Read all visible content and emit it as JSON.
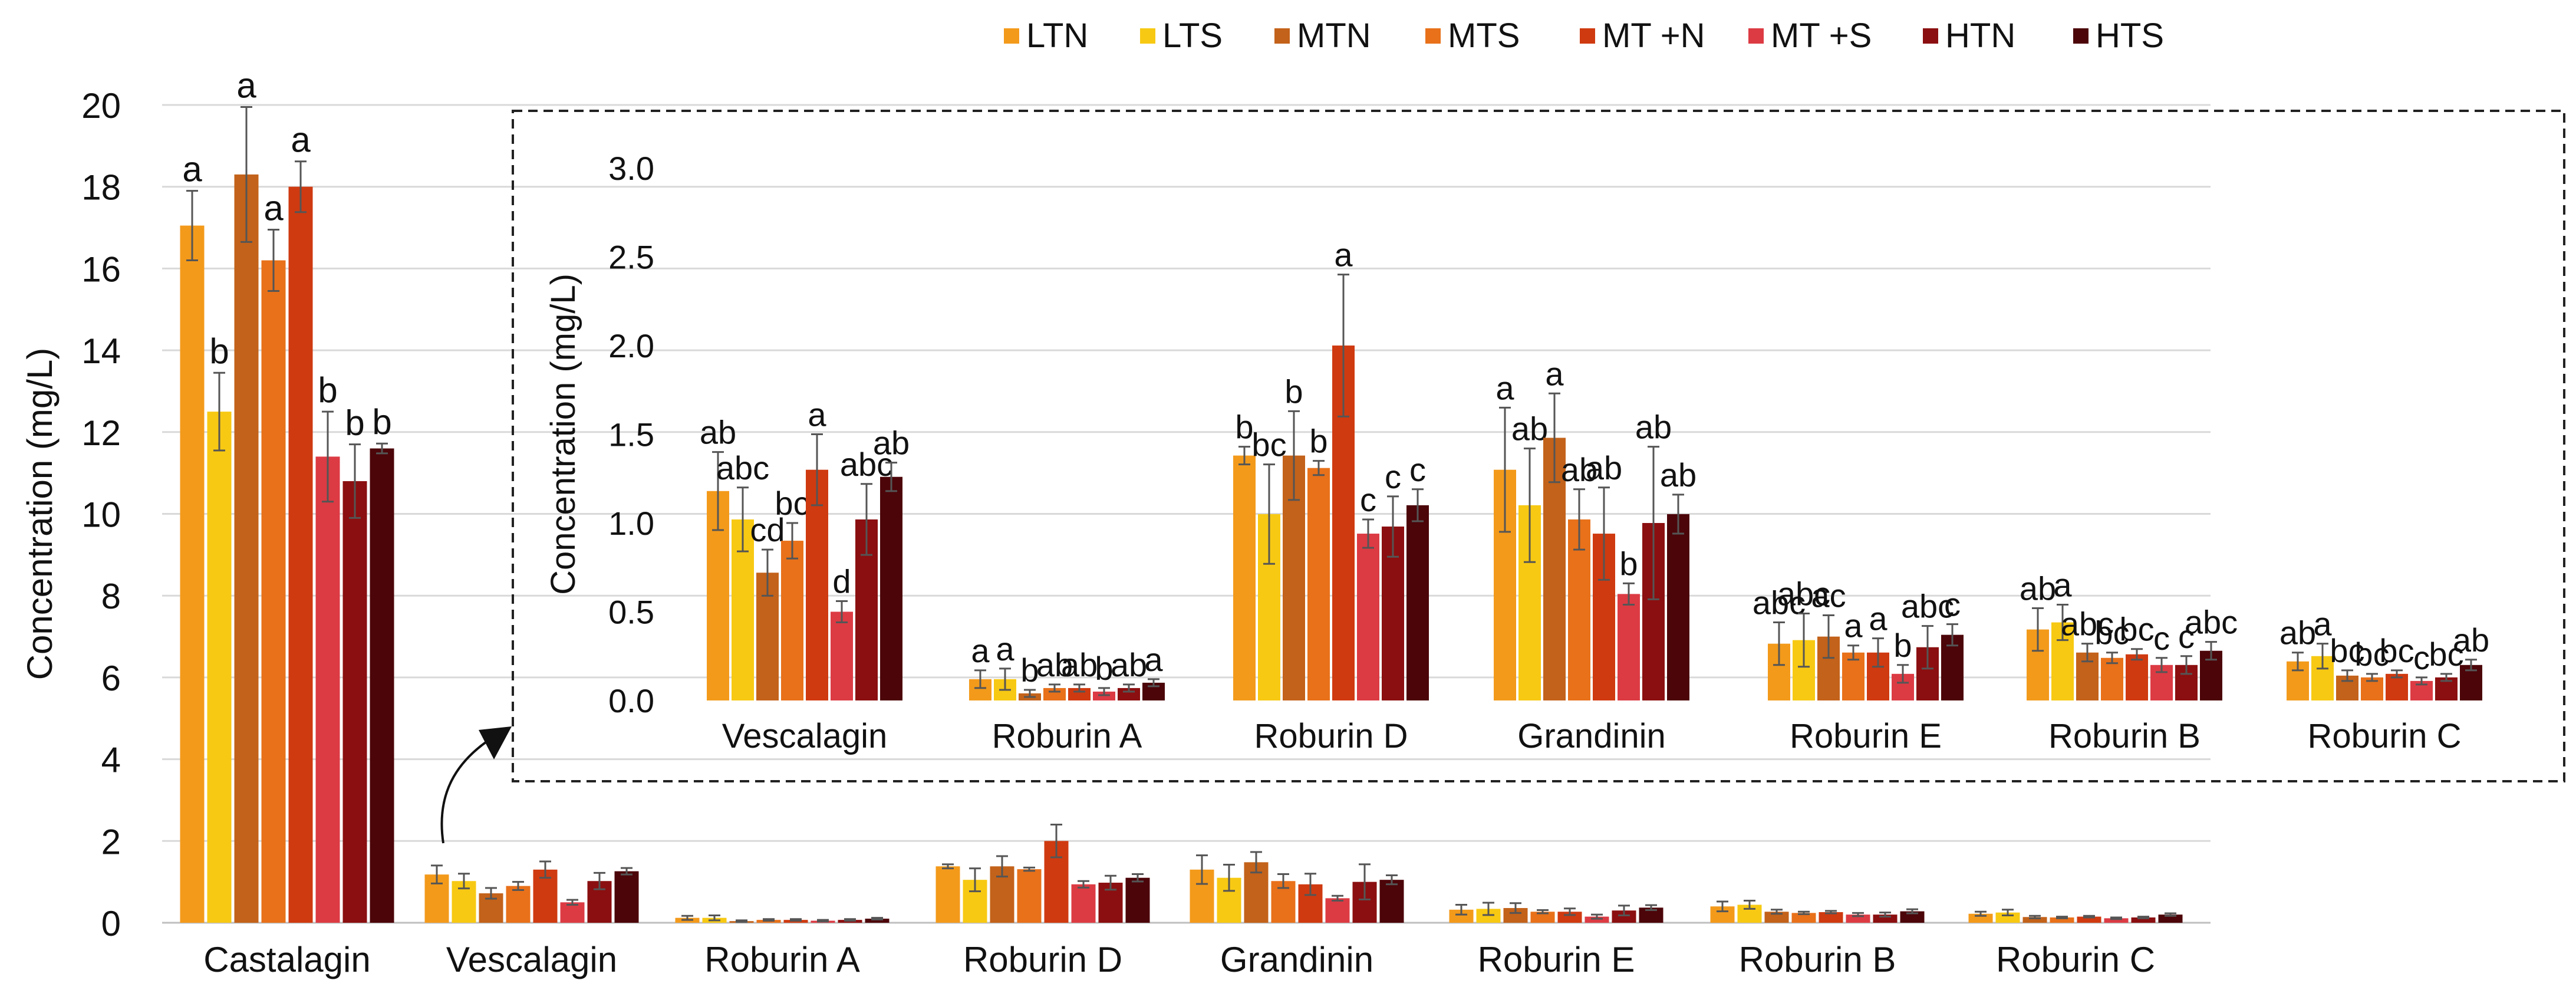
{
  "legend": {
    "items": [
      {
        "label": "LTN",
        "color": "#F39A1B"
      },
      {
        "label": "LTS",
        "color": "#F7C913"
      },
      {
        "label": "MTN",
        "color": "#C3621A"
      },
      {
        "label": "MTS",
        "color": "#E8711A"
      },
      {
        "label": "MT +N",
        "color": "#CF3A10"
      },
      {
        "label": "MT +S",
        "color": "#DC3B44"
      },
      {
        "label": "HTN",
        "color": "#8B0F10"
      },
      {
        "label": "HTS",
        "color": "#4C0509"
      }
    ]
  },
  "chart_data": [
    {
      "type": "bar",
      "panel": "main",
      "ylabel": "Concentration  (mg/L)",
      "ylim": [
        0,
        20
      ],
      "yticks": [
        "0",
        "2",
        "4",
        "6",
        "8",
        "10",
        "12",
        "14",
        "16",
        "18",
        "20"
      ],
      "grid": true,
      "categories": [
        "Castalagin",
        "Vescalagin",
        "Roburin A",
        "Roburin D",
        "Grandinin",
        "Roburin E",
        "Roburin B",
        "Roburin C"
      ],
      "series": [
        {
          "name": "LTN",
          "values": [
            17.05,
            1.18,
            0.12,
            1.38,
            1.3,
            0.32,
            0.4,
            0.22
          ],
          "errors": [
            0.85,
            0.22,
            0.05,
            0.05,
            0.35,
            0.12,
            0.12,
            0.05
          ]
        },
        {
          "name": "LTS",
          "values": [
            12.5,
            1.02,
            0.12,
            1.05,
            1.1,
            0.34,
            0.44,
            0.25
          ],
          "errors": [
            0.95,
            0.18,
            0.06,
            0.28,
            0.32,
            0.15,
            0.1,
            0.07
          ]
        },
        {
          "name": "MTN",
          "values": [
            18.3,
            0.72,
            0.04,
            1.38,
            1.48,
            0.36,
            0.27,
            0.14
          ],
          "errors": [
            1.65,
            0.13,
            0.02,
            0.25,
            0.25,
            0.12,
            0.05,
            0.03
          ]
        },
        {
          "name": "MTS",
          "values": [
            16.2,
            0.9,
            0.07,
            1.31,
            1.02,
            0.27,
            0.24,
            0.13
          ],
          "errors": [
            0.75,
            0.1,
            0.02,
            0.04,
            0.17,
            0.04,
            0.03,
            0.02
          ]
        },
        {
          "name": "MT +N",
          "values": [
            18.0,
            1.3,
            0.07,
            2.0,
            0.94,
            0.27,
            0.26,
            0.15
          ],
          "errors": [
            0.62,
            0.2,
            0.02,
            0.4,
            0.26,
            0.08,
            0.03,
            0.02
          ]
        },
        {
          "name": "MT +S",
          "values": [
            11.4,
            0.5,
            0.05,
            0.94,
            0.6,
            0.15,
            0.2,
            0.11
          ],
          "errors": [
            1.1,
            0.06,
            0.02,
            0.08,
            0.06,
            0.05,
            0.04,
            0.02
          ]
        },
        {
          "name": "HTN",
          "values": [
            10.8,
            1.02,
            0.07,
            0.98,
            1.0,
            0.3,
            0.2,
            0.13
          ],
          "errors": [
            0.9,
            0.2,
            0.02,
            0.17,
            0.43,
            0.12,
            0.05,
            0.02
          ]
        },
        {
          "name": "HTS",
          "values": [
            11.6,
            1.26,
            0.1,
            1.1,
            1.05,
            0.37,
            0.28,
            0.2
          ],
          "errors": [
            0.12,
            0.08,
            0.02,
            0.09,
            0.11,
            0.06,
            0.05,
            0.03
          ]
        }
      ],
      "annotations": [
        [
          "a",
          "b",
          "a",
          "a",
          "a",
          "b",
          "b",
          "b"
        ]
      ]
    },
    {
      "type": "bar",
      "panel": "inset",
      "ylabel": "Concentration  (mg/L)",
      "ylim": [
        0,
        3
      ],
      "yticks": [
        "0.0",
        "0.5",
        "1.0",
        "1.5",
        "2.0",
        "2.5",
        "3.0"
      ],
      "grid": false,
      "categories": [
        "Vescalagin",
        "Roburin A",
        "Roburin D",
        "Grandinin",
        "Roburin E",
        "Roburin B",
        "Roburin C"
      ],
      "series": [
        {
          "name": "LTN",
          "values": [
            1.18,
            0.12,
            1.38,
            1.3,
            0.32,
            0.4,
            0.22
          ],
          "errors": [
            0.22,
            0.05,
            0.05,
            0.35,
            0.12,
            0.12,
            0.05
          ]
        },
        {
          "name": "LTS",
          "values": [
            1.02,
            0.12,
            1.05,
            1.1,
            0.34,
            0.44,
            0.25
          ],
          "errors": [
            0.18,
            0.06,
            0.28,
            0.32,
            0.15,
            0.1,
            0.07
          ]
        },
        {
          "name": "MTN",
          "values": [
            0.72,
            0.04,
            1.38,
            1.48,
            0.36,
            0.27,
            0.14
          ],
          "errors": [
            0.13,
            0.02,
            0.25,
            0.25,
            0.12,
            0.05,
            0.03
          ]
        },
        {
          "name": "MTS",
          "values": [
            0.9,
            0.07,
            1.31,
            1.02,
            0.27,
            0.24,
            0.13
          ],
          "errors": [
            0.1,
            0.02,
            0.04,
            0.17,
            0.04,
            0.03,
            0.02
          ]
        },
        {
          "name": "MT +N",
          "values": [
            1.3,
            0.07,
            2.0,
            0.94,
            0.27,
            0.26,
            0.15
          ],
          "errors": [
            0.2,
            0.02,
            0.4,
            0.26,
            0.08,
            0.03,
            0.02
          ]
        },
        {
          "name": "MT +S",
          "values": [
            0.5,
            0.05,
            0.94,
            0.6,
            0.15,
            0.2,
            0.11
          ],
          "errors": [
            0.06,
            0.02,
            0.08,
            0.06,
            0.05,
            0.04,
            0.02
          ]
        },
        {
          "name": "HTN",
          "values": [
            1.02,
            0.07,
            0.98,
            1.0,
            0.3,
            0.2,
            0.13
          ],
          "errors": [
            0.2,
            0.02,
            0.17,
            0.43,
            0.12,
            0.05,
            0.02
          ]
        },
        {
          "name": "HTS",
          "values": [
            1.26,
            0.1,
            1.1,
            1.05,
            0.37,
            0.28,
            0.2
          ],
          "errors": [
            0.08,
            0.02,
            0.09,
            0.11,
            0.06,
            0.05,
            0.03
          ]
        }
      ],
      "annotations": [
        [
          "ab",
          "abc",
          "cd",
          "bc",
          "a",
          "d",
          "abc",
          "ab"
        ],
        [
          "a",
          "a",
          "b",
          "ab",
          "ab",
          "b",
          "ab",
          "a"
        ],
        [
          "b",
          "bc",
          "b",
          "b",
          "a",
          "c",
          "c",
          "c"
        ],
        [
          "a",
          "ab",
          "a",
          "ab",
          "ab",
          "b",
          "ab",
          "ab"
        ],
        [
          "abc",
          "abc",
          "ac",
          "a",
          "a",
          "b",
          "abc",
          "c"
        ],
        [
          "ab",
          "a",
          "abc",
          "bc",
          "bc",
          "c",
          "c",
          "abc"
        ],
        [
          "ab",
          "a",
          "bc",
          "bc",
          "bc",
          "c",
          "bc",
          "ab"
        ]
      ]
    }
  ]
}
